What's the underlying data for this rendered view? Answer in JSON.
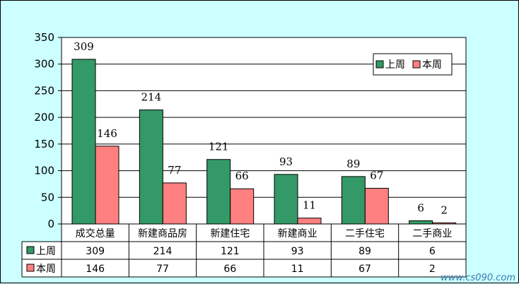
{
  "chart_data": {
    "type": "bar",
    "categories": [
      "成交总量",
      "新建商品房",
      "新建住宅",
      "新建商业",
      "二手住宅",
      "二手商业"
    ],
    "series": [
      {
        "name": "上周",
        "values": [
          309,
          214,
          121,
          93,
          89,
          6
        ],
        "color": "#339966"
      },
      {
        "name": "本周",
        "values": [
          146,
          77,
          66,
          11,
          67,
          2
        ],
        "color": "#ff8080"
      }
    ],
    "yticks": [
      "0",
      "50",
      "100",
      "150",
      "200",
      "250",
      "300",
      "350"
    ],
    "ylim": [
      0,
      350
    ],
    "grid": true,
    "legend_position": "top-right",
    "data_table": true,
    "colors": {
      "background": "#ccffff",
      "plot_background": "#ffffff"
    }
  },
  "watermark": {
    "text": "www.cs090.com"
  }
}
